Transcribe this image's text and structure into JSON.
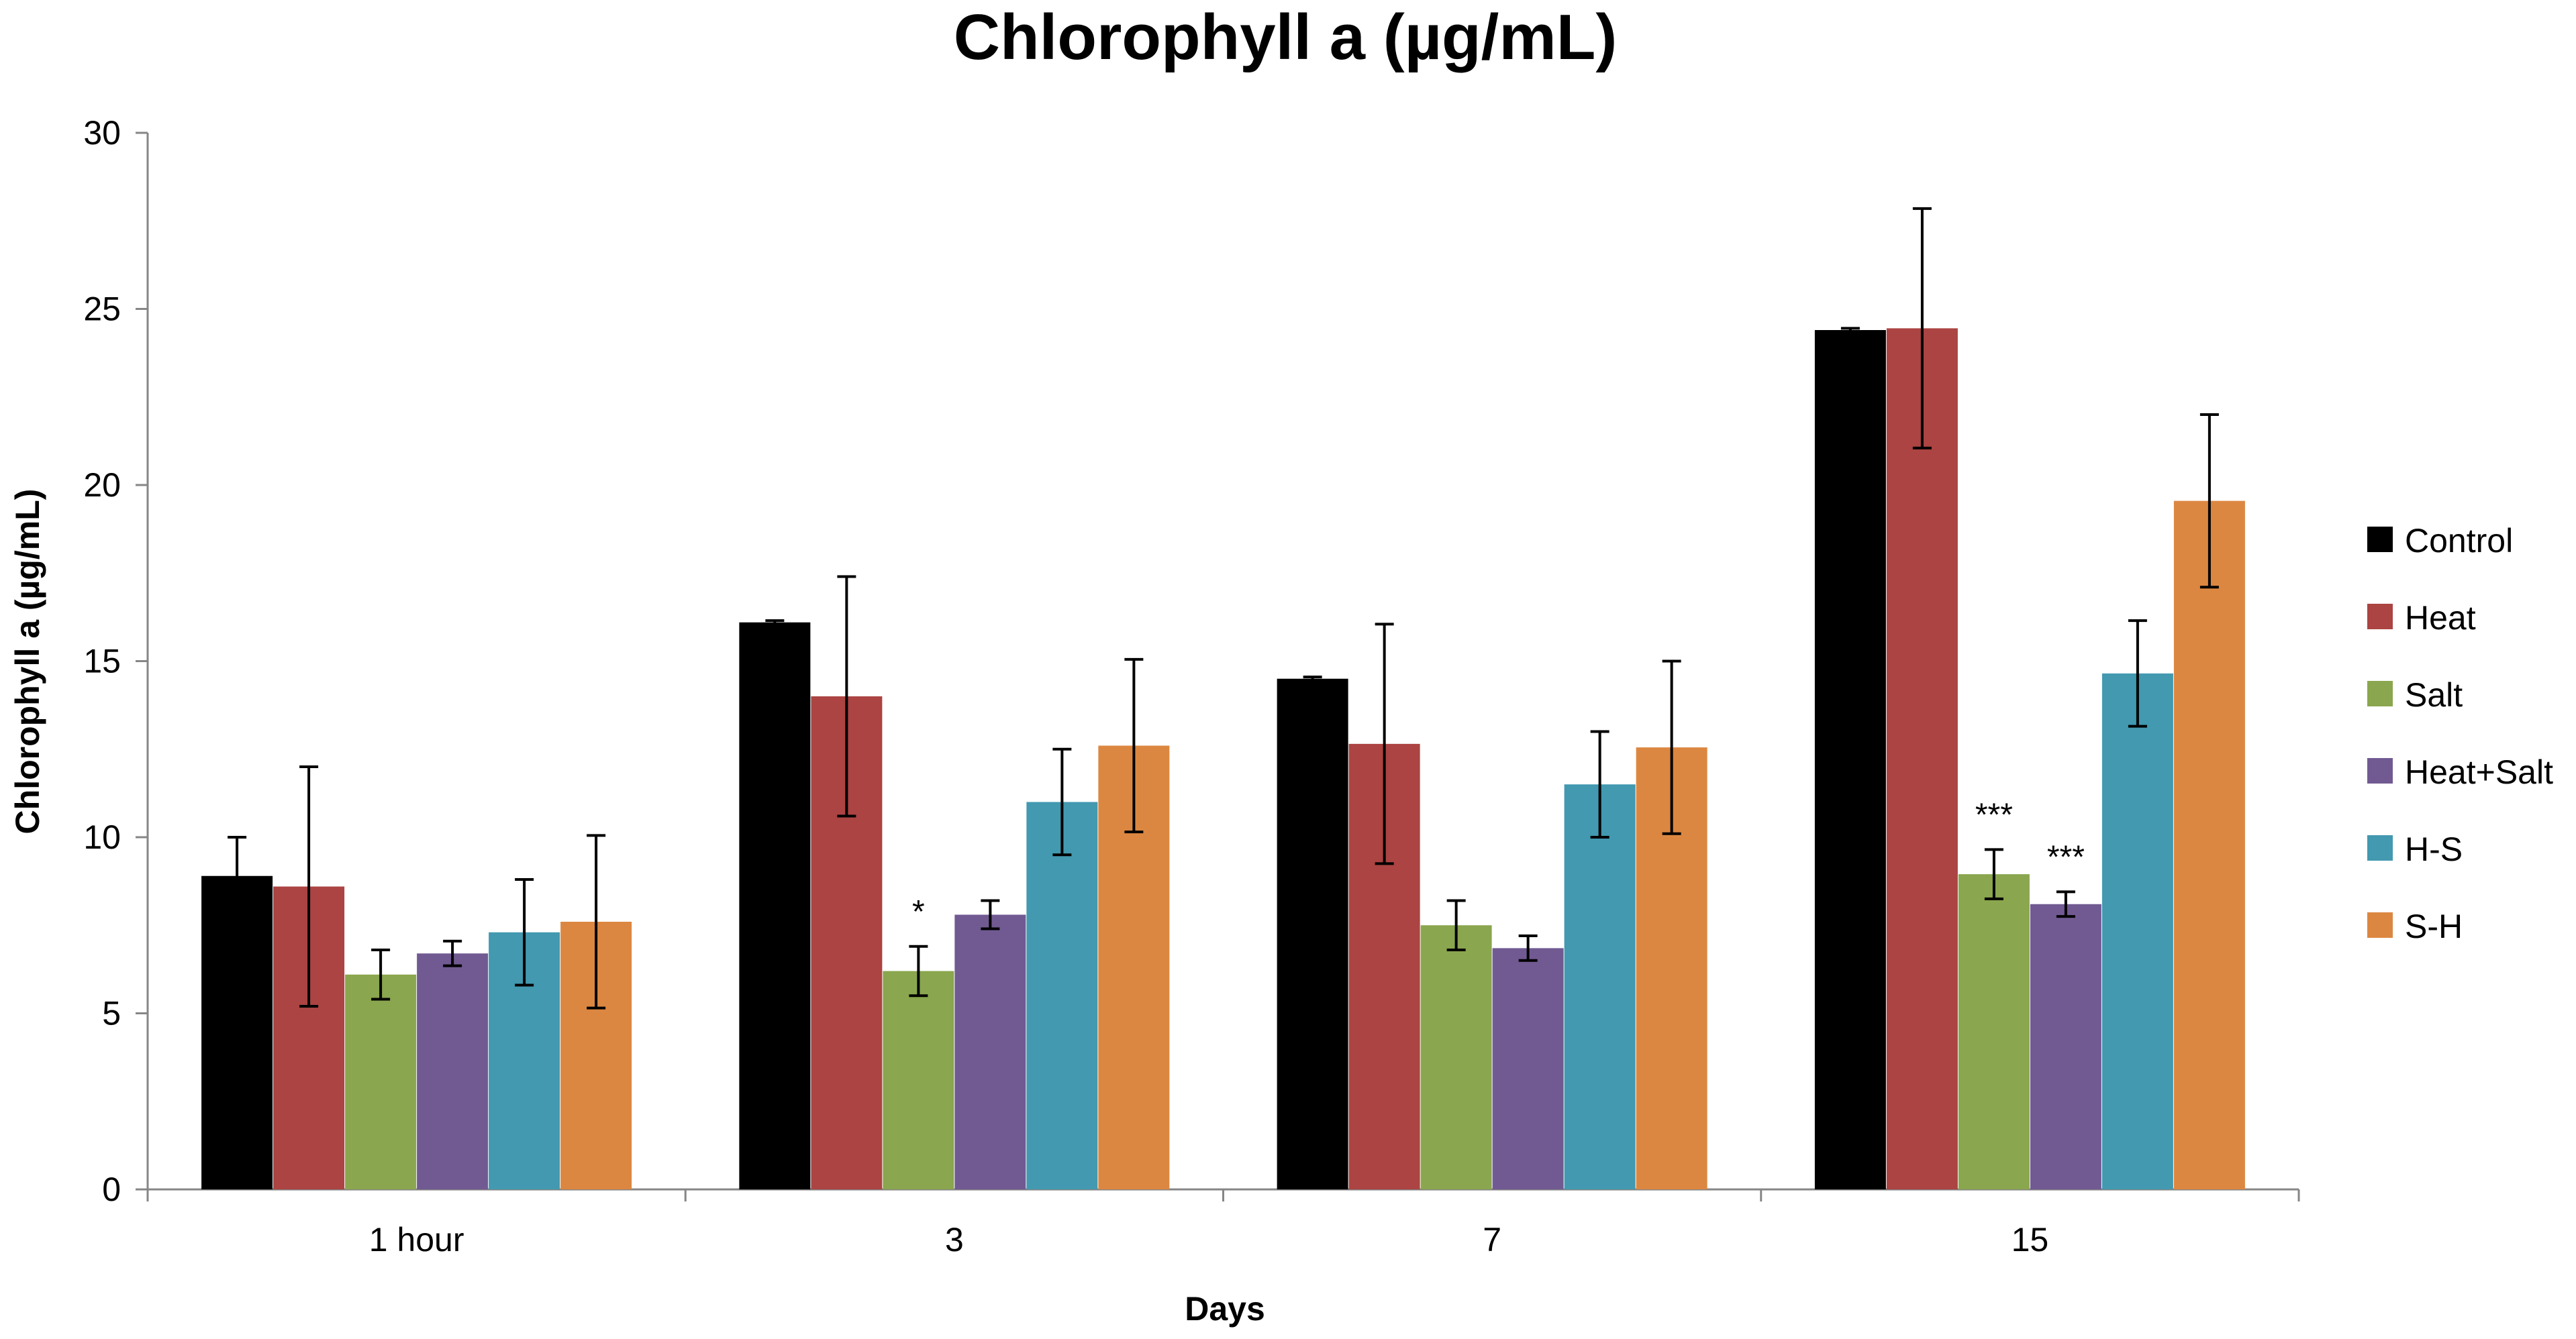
{
  "chart_data": {
    "type": "bar",
    "title": "Chlorophyll a (µg/mL)",
    "xlabel": "Days",
    "ylabel": "Chlorophyll a (µg/mL)",
    "ylim": [
      0,
      30
    ],
    "yticks": [
      0,
      5,
      10,
      15,
      20,
      25,
      30
    ],
    "grid": false,
    "legend_position": "right",
    "categories": [
      "1 hour",
      "3",
      "7",
      "15"
    ],
    "series": [
      {
        "name": "Control",
        "color": "#000000",
        "values": [
          8.9,
          16.1,
          14.5,
          24.4
        ],
        "errors": [
          1.1,
          0.05,
          0.05,
          0.05
        ]
      },
      {
        "name": "Heat",
        "color": "#AB4442",
        "values": [
          8.6,
          14.0,
          12.65,
          24.45
        ],
        "errors": [
          3.4,
          3.4,
          3.4,
          3.4
        ]
      },
      {
        "name": "Salt",
        "color": "#8AA64E",
        "values": [
          6.1,
          6.2,
          7.5,
          8.95
        ],
        "errors": [
          0.7,
          0.7,
          0.7,
          0.7
        ]
      },
      {
        "name": "Heat+Salt",
        "color": "#715A92",
        "values": [
          6.7,
          7.8,
          6.85,
          8.1
        ],
        "errors": [
          0.35,
          0.4,
          0.35,
          0.35
        ]
      },
      {
        "name": "H-S",
        "color": "#4299B0",
        "values": [
          7.3,
          11.0,
          11.5,
          14.65
        ],
        "errors": [
          1.5,
          1.5,
          1.5,
          1.5
        ]
      },
      {
        "name": "S-H",
        "color": "#DC8741",
        "values": [
          7.6,
          12.6,
          12.55,
          19.55
        ],
        "errors": [
          2.45,
          2.45,
          2.45,
          2.45
        ]
      }
    ],
    "annotations": [
      {
        "text": "*",
        "category": "3",
        "series": "Salt"
      },
      {
        "text": "***",
        "category": "15",
        "series": "Salt"
      },
      {
        "text": "***",
        "category": "15",
        "series": "Heat+Salt"
      }
    ]
  }
}
